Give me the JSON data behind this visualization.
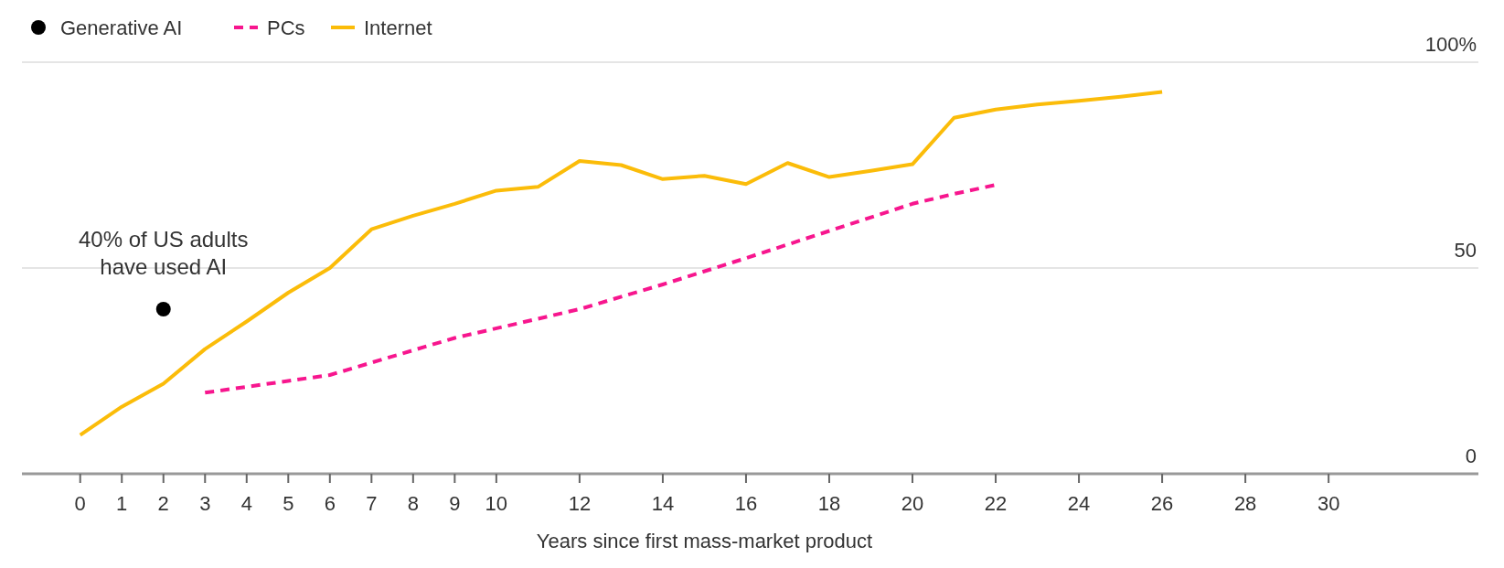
{
  "chart_data": {
    "type": "line",
    "xlabel": "Years since first mass-market product",
    "xlim": [
      -1.4,
      33.6
    ],
    "xticks": [
      0,
      1,
      2,
      3,
      4,
      5,
      6,
      7,
      8,
      9,
      10,
      12,
      14,
      16,
      18,
      20,
      22,
      24,
      26,
      28,
      30
    ],
    "ylim": [
      0,
      100
    ],
    "yticks": [
      0,
      50,
      {
        "value": 100,
        "label": "100%"
      }
    ],
    "grid": "y",
    "legend": "top left",
    "series": [
      {
        "name": "Generative AI",
        "type": "scatter",
        "color": "#000000",
        "marker": "circle",
        "x": [
          2
        ],
        "values": [
          40
        ]
      },
      {
        "name": "PCs",
        "color": "#f7168e",
        "line_style": "dashed",
        "x": [
          3,
          6,
          9,
          12,
          14,
          16,
          18,
          20,
          21,
          22
        ],
        "values": [
          19.7,
          24,
          33,
          40,
          46,
          52.4,
          59,
          65.6,
          68,
          70.2
        ]
      },
      {
        "name": "Internet",
        "color": "#fbbc09",
        "line_style": "solid",
        "x": [
          0,
          1,
          2,
          3,
          4,
          5,
          6,
          7,
          8,
          9,
          10,
          11,
          12,
          13,
          14,
          15,
          16,
          17,
          18,
          19,
          20,
          21,
          22,
          23,
          24,
          25,
          26
        ],
        "values": [
          9.4,
          16.3,
          21.9,
          30.3,
          37,
          44,
          50,
          59.4,
          62.7,
          65.6,
          68.8,
          69.7,
          76,
          75,
          71.6,
          72.4,
          70.4,
          75.5,
          72.1,
          73.6,
          75.2,
          86.5,
          88.5,
          89.7,
          90.6,
          91.6,
          92.8
        ]
      }
    ],
    "annotations": [
      {
        "text": "40% of US adults have used AI",
        "x": 2,
        "y": 40
      }
    ]
  }
}
